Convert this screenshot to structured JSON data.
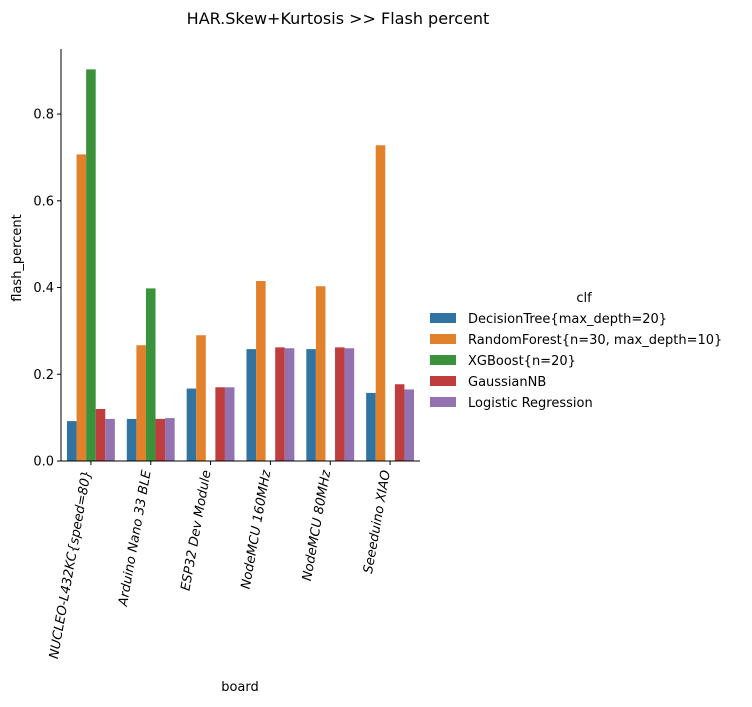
{
  "chart_data": {
    "type": "bar",
    "title": "HAR.Skew+Kurtosis >> Flash percent",
    "xlabel": "board",
    "ylabel": "flash_percent",
    "ylim": [
      0,
      0.95
    ],
    "yticks": [
      0.0,
      0.2,
      0.4,
      0.6,
      0.8
    ],
    "ytick_labels": [
      "0.0",
      "0.2",
      "0.4",
      "0.6",
      "0.8"
    ],
    "categories": [
      "NUCLEO-L432KC{speed=80}",
      "Arduino Nano 33 BLE",
      "ESP32 Dev Module",
      "NodeMCU 160MHz",
      "NodeMCU 80MHz",
      "Seeeduino XIAO"
    ],
    "legend_title": "clf",
    "legend_position": "right",
    "grid": false,
    "series": [
      {
        "name": "DecisionTree{max_depth=20}",
        "color": "#3274a1",
        "values": [
          0.092,
          0.097,
          0.167,
          0.258,
          0.258,
          0.157
        ]
      },
      {
        "name": "RandomForest{n=30, max_depth=10}",
        "color": "#e1812c",
        "values": [
          0.707,
          0.267,
          0.29,
          0.415,
          0.403,
          0.728
        ]
      },
      {
        "name": "XGBoost{n=20}",
        "color": "#3a923a",
        "values": [
          0.903,
          0.398,
          null,
          null,
          null,
          null
        ]
      },
      {
        "name": "GaussianNB",
        "color": "#c03d3e",
        "values": [
          0.12,
          0.097,
          0.17,
          0.262,
          0.262,
          0.177
        ]
      },
      {
        "name": "Logistic Regression",
        "color": "#9372b2",
        "values": [
          0.097,
          0.099,
          0.17,
          0.26,
          0.26,
          0.165
        ]
      }
    ]
  }
}
